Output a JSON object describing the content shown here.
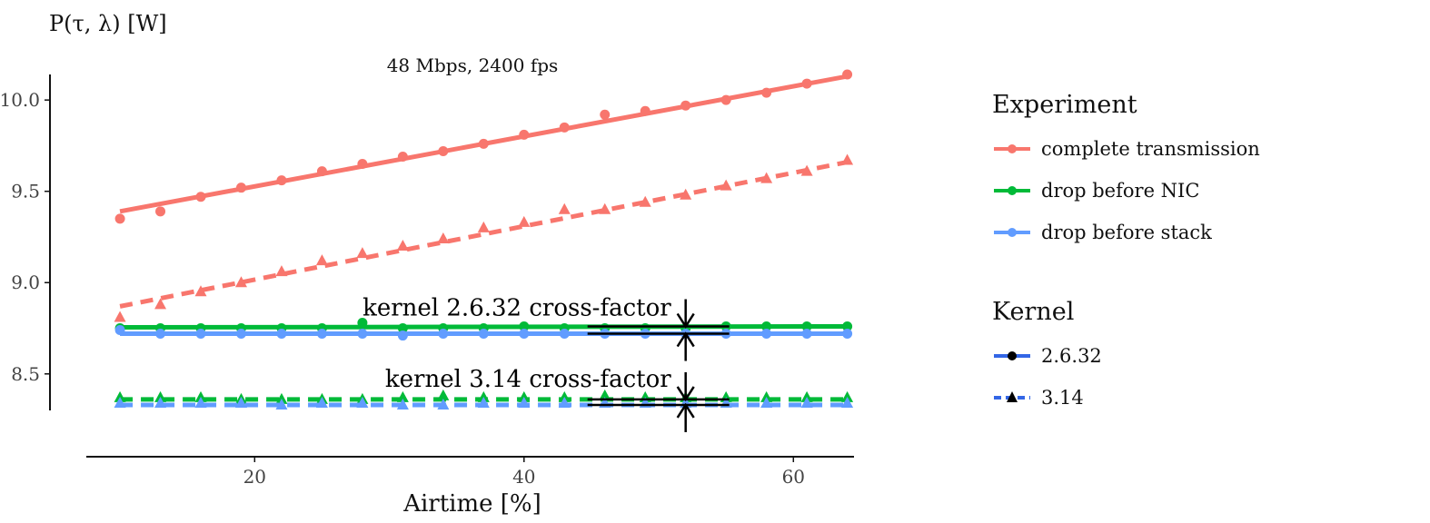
{
  "chart_data": {
    "type": "line",
    "title": "48 Mbps, 2400 fps",
    "xlabel": "Airtime [%]",
    "ylabel": "P(τ, λ) [W]",
    "xlim": [
      7.5,
      64.5
    ],
    "ylim": [
      8.3,
      10.15
    ],
    "xticks": [
      "20",
      "40",
      "60"
    ],
    "yticks": [
      "8.5",
      "9.0",
      "9.5",
      "10.0"
    ],
    "x": [
      10,
      13,
      16,
      19,
      22,
      25,
      28,
      31,
      34,
      37,
      40,
      43,
      46,
      49,
      52,
      55,
      58,
      61,
      64
    ],
    "series": [
      {
        "name": "complete transmission",
        "kernel": "2.6.32",
        "color": "#F8766D",
        "marker": "circle",
        "fit": [
          9.39,
          10.13
        ],
        "values": [
          9.35,
          9.39,
          9.47,
          9.52,
          9.56,
          9.61,
          9.65,
          9.69,
          9.72,
          9.76,
          9.81,
          9.85,
          9.92,
          9.94,
          9.97,
          10.0,
          10.04,
          10.09,
          10.14
        ]
      },
      {
        "name": "complete transmission",
        "kernel": "3.14",
        "color": "#F8766D",
        "marker": "triangle",
        "fit": [
          8.87,
          9.66
        ],
        "values": [
          8.81,
          8.88,
          8.95,
          9.0,
          9.06,
          9.12,
          9.16,
          9.2,
          9.24,
          9.3,
          9.33,
          9.4,
          9.4,
          9.44,
          9.48,
          9.53,
          9.57,
          9.61,
          9.67
        ]
      },
      {
        "name": "drop before NIC",
        "kernel": "2.6.32",
        "color": "#00BA38",
        "marker": "circle",
        "fit": [
          8.755,
          8.76
        ],
        "values": [
          8.75,
          8.75,
          8.75,
          8.75,
          8.75,
          8.75,
          8.78,
          8.75,
          8.75,
          8.75,
          8.76,
          8.75,
          8.75,
          8.75,
          8.75,
          8.76,
          8.76,
          8.76,
          8.76
        ]
      },
      {
        "name": "drop before NIC",
        "kernel": "3.14",
        "color": "#00BA38",
        "marker": "triangle",
        "fit": [
          8.36,
          8.36
        ],
        "values": [
          8.37,
          8.37,
          8.37,
          8.36,
          8.36,
          8.36,
          8.36,
          8.37,
          8.38,
          8.37,
          8.37,
          8.37,
          8.38,
          8.37,
          8.37,
          8.37,
          8.37,
          8.37,
          8.37
        ]
      },
      {
        "name": "drop before stack",
        "kernel": "2.6.32",
        "color": "#619CFF",
        "marker": "circle",
        "fit": [
          8.72,
          8.72
        ],
        "values": [
          8.74,
          8.72,
          8.72,
          8.72,
          8.72,
          8.72,
          8.72,
          8.71,
          8.72,
          8.72,
          8.72,
          8.72,
          8.72,
          8.72,
          8.72,
          8.72,
          8.72,
          8.72,
          8.72
        ]
      },
      {
        "name": "drop before stack",
        "kernel": "3.14",
        "color": "#619CFF",
        "marker": "triangle",
        "fit": [
          8.33,
          8.33
        ],
        "values": [
          8.34,
          8.34,
          8.34,
          8.34,
          8.33,
          8.34,
          8.34,
          8.33,
          8.33,
          8.34,
          8.34,
          8.34,
          8.34,
          8.34,
          8.34,
          8.34,
          8.34,
          8.34,
          8.34
        ]
      }
    ],
    "annotations": [
      {
        "text": "kernel 2.6.32 cross-factor",
        "x": 52,
        "y_top": 8.76,
        "y_bottom": 8.72,
        "text_y": 8.82
      },
      {
        "text": "kernel 3.14 cross-factor",
        "x": 52,
        "y_top": 8.36,
        "y_bottom": 8.33,
        "text_y": 8.43
      }
    ],
    "legend": {
      "placement": "right",
      "experiment_title": "Experiment",
      "experiment": [
        {
          "label": "complete transmission",
          "color": "#F8766D"
        },
        {
          "label": "drop before NIC",
          "color": "#00BA38"
        },
        {
          "label": "drop before stack",
          "color": "#619CFF"
        }
      ],
      "kernel_title": "Kernel",
      "kernel": [
        {
          "label": "2.6.32",
          "marker": "circle",
          "line": "solid",
          "color": "#3366E6"
        },
        {
          "label": "3.14",
          "marker": "triangle",
          "line": "dashed",
          "color": "#3366E6"
        }
      ]
    }
  }
}
